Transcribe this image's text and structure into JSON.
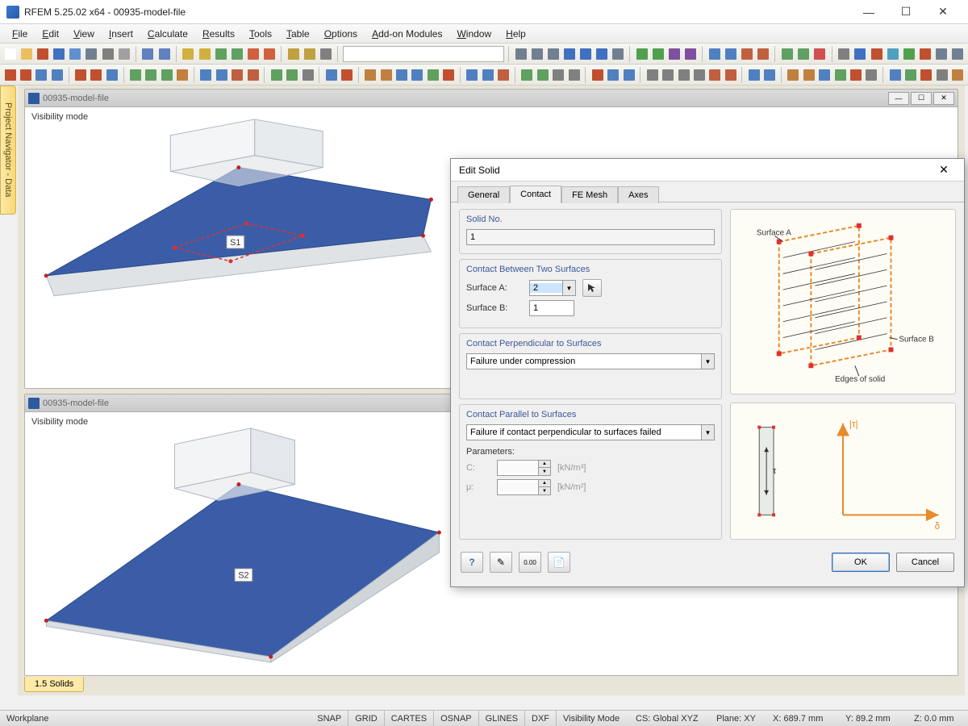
{
  "window": {
    "title": "RFEM 5.25.02 x64 - 00935-model-file"
  },
  "menu": [
    "File",
    "Edit",
    "View",
    "Insert",
    "Calculate",
    "Results",
    "Tools",
    "Table",
    "Options",
    "Add-on Modules",
    "Window",
    "Help"
  ],
  "documents": {
    "top": {
      "title": "00935-model-file",
      "mode_label": "Visibility mode",
      "surface_label": "S1"
    },
    "bottom": {
      "title": "00935-model-file",
      "mode_label": "Visibility mode",
      "surface_label": "S2"
    }
  },
  "side_tab": "Project Navigator - Data",
  "workspace_tab": "1.5 Solids",
  "dialog": {
    "title": "Edit Solid",
    "tabs": [
      "General",
      "Contact",
      "FE Mesh",
      "Axes"
    ],
    "active_tab": 1,
    "solid_no": {
      "label": "Solid No.",
      "value": "1"
    },
    "contact_between": {
      "label": "Contact Between Two Surfaces",
      "surface_a_label": "Surface A:",
      "surface_a_value": "2",
      "surface_b_label": "Surface B:",
      "surface_b_value": "1"
    },
    "perpendicular": {
      "label": "Contact Perpendicular to Surfaces",
      "value": "Failure under compression"
    },
    "parallel": {
      "label": "Contact Parallel to Surfaces",
      "value": "Failure if contact perpendicular to surfaces failed",
      "params_label": "Parameters:",
      "c_label": "C:",
      "c_unit": "[kN/m³]",
      "mu_label": "μ:",
      "mu_unit": "[kN/m²]"
    },
    "diagram": {
      "surface_a": "Surface A",
      "surface_b": "Surface B",
      "edges": "Edges of solid"
    },
    "graph": {
      "y_label": "|τ|",
      "x_label": "δ",
      "tau": "τ"
    },
    "ok": "OK",
    "cancel": "Cancel"
  },
  "statusbar": {
    "workplane": "Workplane",
    "snap": "SNAP",
    "grid": "GRID",
    "cartes": "CARTES",
    "osnap": "OSNAP",
    "glines": "GLINES",
    "dxf": "DXF",
    "vis": "Visibility Mode",
    "cs": "CS: Global XYZ",
    "plane": "Plane: XY",
    "x": "X:  689.7 mm",
    "y": "Y:  89.2 mm",
    "z": "Z:  0.0 mm"
  },
  "colors": {
    "surface_fill": "#3b5da8",
    "edge_thick": "#c0c8d0",
    "dash_red": "#e03030",
    "dialog_accent": "#3b5998",
    "diagram_bg": "#fefdf5",
    "orange": "#e88a2a"
  },
  "toolbar_icons_row1": [
    {
      "c": "#ffffff"
    },
    {
      "c": "#e8c060"
    },
    {
      "c": "#c05030"
    },
    {
      "c": "#4070c0"
    },
    {
      "c": "#6090d0"
    },
    {
      "c": "#708090"
    },
    {
      "c": "#808080"
    },
    {
      "c": "#a0a0a0"
    },
    {
      "sep": true
    },
    {
      "c": "#6080c0"
    },
    {
      "c": "#6080c0"
    },
    {
      "sep": true
    },
    {
      "c": "#d0b040"
    },
    {
      "c": "#d0b040"
    },
    {
      "c": "#60a060"
    },
    {
      "c": "#60a060"
    },
    {
      "c": "#d06040"
    },
    {
      "c": "#d06040"
    },
    {
      "sep": true
    },
    {
      "c": "#c0a040"
    },
    {
      "c": "#c0a040"
    },
    {
      "c": "#808080"
    },
    {
      "sep": true
    },
    {
      "combo": true
    },
    {
      "sep": true
    },
    {
      "c": "#708090"
    },
    {
      "c": "#708090"
    },
    {
      "c": "#708090"
    },
    {
      "c": "#4070c0"
    },
    {
      "c": "#4070c0"
    },
    {
      "c": "#4070c0"
    },
    {
      "c": "#708090"
    },
    {
      "sep": true
    },
    {
      "c": "#50a050"
    },
    {
      "c": "#50a050"
    },
    {
      "c": "#8050a0"
    },
    {
      "c": "#8050a0"
    },
    {
      "sep": true
    },
    {
      "c": "#5080c0"
    },
    {
      "c": "#5080c0"
    },
    {
      "c": "#c06040"
    },
    {
      "c": "#c06040"
    },
    {
      "sep": true
    },
    {
      "c": "#60a060"
    },
    {
      "c": "#60a060"
    },
    {
      "c": "#d05050"
    },
    {
      "sep": true
    },
    {
      "c": "#808080"
    },
    {
      "c": "#4070c0"
    },
    {
      "c": "#c05030"
    },
    {
      "c": "#50a0c0"
    },
    {
      "c": "#50a050"
    },
    {
      "c": "#c05030"
    },
    {
      "c": "#708090"
    },
    {
      "c": "#708090"
    }
  ],
  "toolbar_icons_row2": [
    {
      "c": "#c05030"
    },
    {
      "c": "#c05030"
    },
    {
      "c": "#5080c0"
    },
    {
      "c": "#5080c0"
    },
    {
      "sep": true
    },
    {
      "c": "#c05030"
    },
    {
      "c": "#c05030"
    },
    {
      "c": "#5080c0"
    },
    {
      "sep": true
    },
    {
      "c": "#60a060"
    },
    {
      "c": "#60a060"
    },
    {
      "c": "#60a060"
    },
    {
      "c": "#c08040"
    },
    {
      "sep": true
    },
    {
      "c": "#5080c0"
    },
    {
      "c": "#5080c0"
    },
    {
      "c": "#c06040"
    },
    {
      "c": "#c06040"
    },
    {
      "sep": true
    },
    {
      "c": "#60a060"
    },
    {
      "c": "#60a060"
    },
    {
      "c": "#808080"
    },
    {
      "sep": true
    },
    {
      "c": "#5080c0"
    },
    {
      "c": "#c05030"
    },
    {
      "sep": true
    },
    {
      "c": "#c08040"
    },
    {
      "c": "#c08040"
    },
    {
      "c": "#5080c0"
    },
    {
      "c": "#5080c0"
    },
    {
      "c": "#60a060"
    },
    {
      "c": "#c05030"
    },
    {
      "sep": true
    },
    {
      "c": "#5080c0"
    },
    {
      "c": "#5080c0"
    },
    {
      "c": "#c06040"
    },
    {
      "sep": true
    },
    {
      "c": "#60a060"
    },
    {
      "c": "#60a060"
    },
    {
      "c": "#808080"
    },
    {
      "c": "#808080"
    },
    {
      "sep": true
    },
    {
      "c": "#c05030"
    },
    {
      "c": "#5080c0"
    },
    {
      "c": "#5080c0"
    },
    {
      "sep": true
    },
    {
      "c": "#808080"
    },
    {
      "c": "#808080"
    },
    {
      "c": "#808080"
    },
    {
      "c": "#808080"
    },
    {
      "c": "#c06040"
    },
    {
      "c": "#c06040"
    },
    {
      "sep": true
    },
    {
      "c": "#5080c0"
    },
    {
      "c": "#5080c0"
    },
    {
      "sep": true
    },
    {
      "c": "#c08040"
    },
    {
      "c": "#c08040"
    },
    {
      "c": "#5080c0"
    },
    {
      "c": "#60a060"
    },
    {
      "c": "#c05030"
    },
    {
      "c": "#808080"
    },
    {
      "sep": true
    },
    {
      "c": "#5080c0"
    },
    {
      "c": "#60a060"
    },
    {
      "c": "#c05030"
    },
    {
      "c": "#808080"
    },
    {
      "c": "#c08040"
    }
  ]
}
